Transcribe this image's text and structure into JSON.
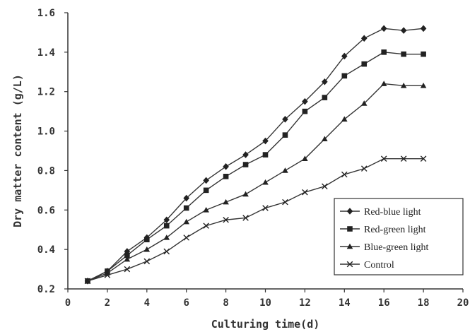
{
  "chart_data": {
    "type": "line",
    "title": "",
    "xlabel": "Culturing time(d)",
    "ylabel": "Dry matter content (g/L)",
    "xlim": [
      0,
      20
    ],
    "ylim": [
      0.2,
      1.6
    ],
    "x_ticks": [
      "0",
      "2",
      "4",
      "6",
      "8",
      "10",
      "12",
      "14",
      "16",
      "18",
      "20"
    ],
    "y_ticks": [
      "0.2",
      "0.4",
      "0.6",
      "0.8",
      "1.0",
      "1.2",
      "1.4",
      "1.6"
    ],
    "grid": false,
    "legend_position": "bottom-right",
    "x": [
      1,
      2,
      3,
      4,
      5,
      6,
      7,
      8,
      9,
      10,
      11,
      12,
      13,
      14,
      15,
      16,
      17,
      18
    ],
    "series": [
      {
        "name": "Red-blue light",
        "marker": "diamond",
        "values": [
          0.24,
          0.29,
          0.39,
          0.46,
          0.55,
          0.66,
          0.75,
          0.82,
          0.88,
          0.95,
          1.06,
          1.15,
          1.25,
          1.38,
          1.47,
          1.52,
          1.51,
          1.52
        ]
      },
      {
        "name": "Red-green light",
        "marker": "square",
        "values": [
          0.24,
          0.29,
          0.37,
          0.45,
          0.52,
          0.61,
          0.7,
          0.77,
          0.83,
          0.88,
          0.98,
          1.1,
          1.17,
          1.28,
          1.34,
          1.4,
          1.39,
          1.39
        ]
      },
      {
        "name": "Blue-green light",
        "marker": "triangle",
        "values": [
          0.24,
          0.28,
          0.35,
          0.4,
          0.46,
          0.54,
          0.6,
          0.64,
          0.68,
          0.74,
          0.8,
          0.86,
          0.96,
          1.06,
          1.14,
          1.24,
          1.23,
          1.23
        ]
      },
      {
        "name": "Control",
        "marker": "x",
        "values": [
          0.24,
          0.27,
          0.3,
          0.34,
          0.39,
          0.46,
          0.52,
          0.55,
          0.56,
          0.61,
          0.64,
          0.69,
          0.72,
          0.78,
          0.81,
          0.86,
          0.86,
          0.86
        ]
      }
    ]
  }
}
